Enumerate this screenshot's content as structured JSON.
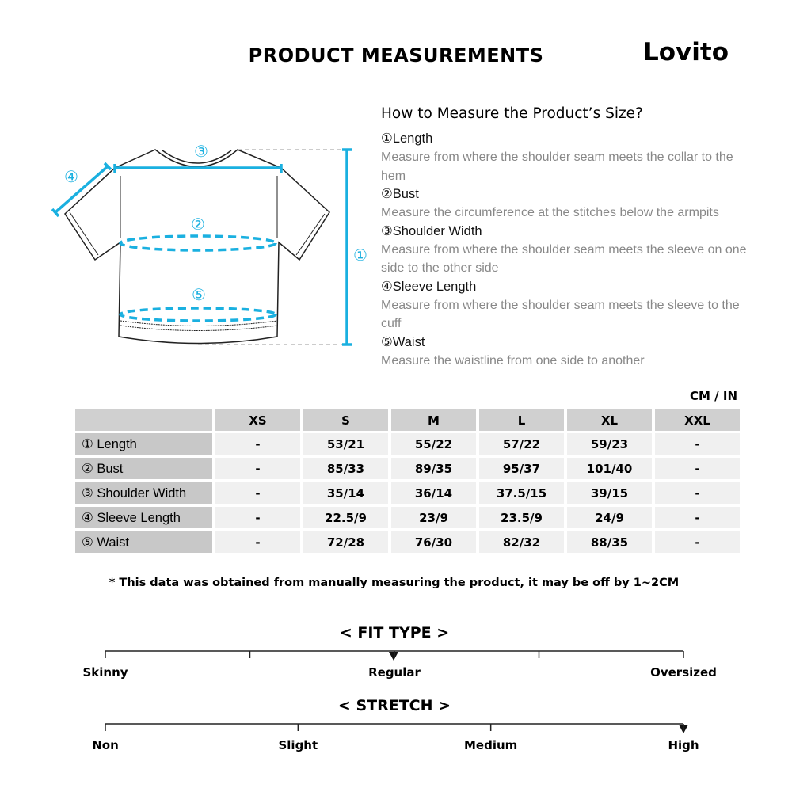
{
  "header": {
    "title": "PRODUCT MEASUREMENTS",
    "brand": "Lovito"
  },
  "diagram": {
    "markers": [
      "③",
      "④",
      "②",
      "①",
      "⑤"
    ]
  },
  "guide": {
    "title": "How to Measure the Product’s Size?",
    "items": [
      {
        "label": "①Length",
        "desc": "Measure from where the shoulder seam meets the collar to the hem"
      },
      {
        "label": "②Bust",
        "desc": "Measure the circumference at the stitches below the armpits"
      },
      {
        "label": "③Shoulder Width",
        "desc": "Measure from where the shoulder seam meets the sleeve on one side to the other side"
      },
      {
        "label": "④Sleeve Length",
        "desc": "Measure from where the shoulder seam meets the sleeve to the cuff"
      },
      {
        "label": "⑤Waist",
        "desc": "Measure the waistline from one side to another"
      }
    ]
  },
  "table": {
    "unit": "CM / IN",
    "header": [
      "XS",
      "S",
      "M",
      "L",
      "XL",
      "XXL"
    ],
    "rows": [
      [
        "① Length",
        "-",
        "53/21",
        "55/22",
        "57/22",
        "59/23",
        "-"
      ],
      [
        "② Bust",
        "-",
        "85/33",
        "89/35",
        "95/37",
        "101/40",
        "-"
      ],
      [
        "③ Shoulder Width",
        "-",
        "35/14",
        "36/14",
        "37.5/15",
        "39/15",
        "-"
      ],
      [
        "④ Sleeve Length",
        "-",
        "22.5/9",
        "23/9",
        "23.5/9",
        "24/9",
        "-"
      ],
      [
        "⑤ Waist",
        "-",
        "72/28",
        "76/30",
        "82/32",
        "88/35",
        "-"
      ]
    ]
  },
  "note": "* This data was obtained from manually measuring the product, it may be off by 1~2CM",
  "fit_type": {
    "title": "< FIT TYPE >",
    "labels": [
      "Skinny",
      "Regular",
      "Oversized"
    ]
  },
  "stretch": {
    "title": "< STRETCH >",
    "labels": [
      "Non",
      "Slight",
      "Medium",
      "High"
    ]
  }
}
